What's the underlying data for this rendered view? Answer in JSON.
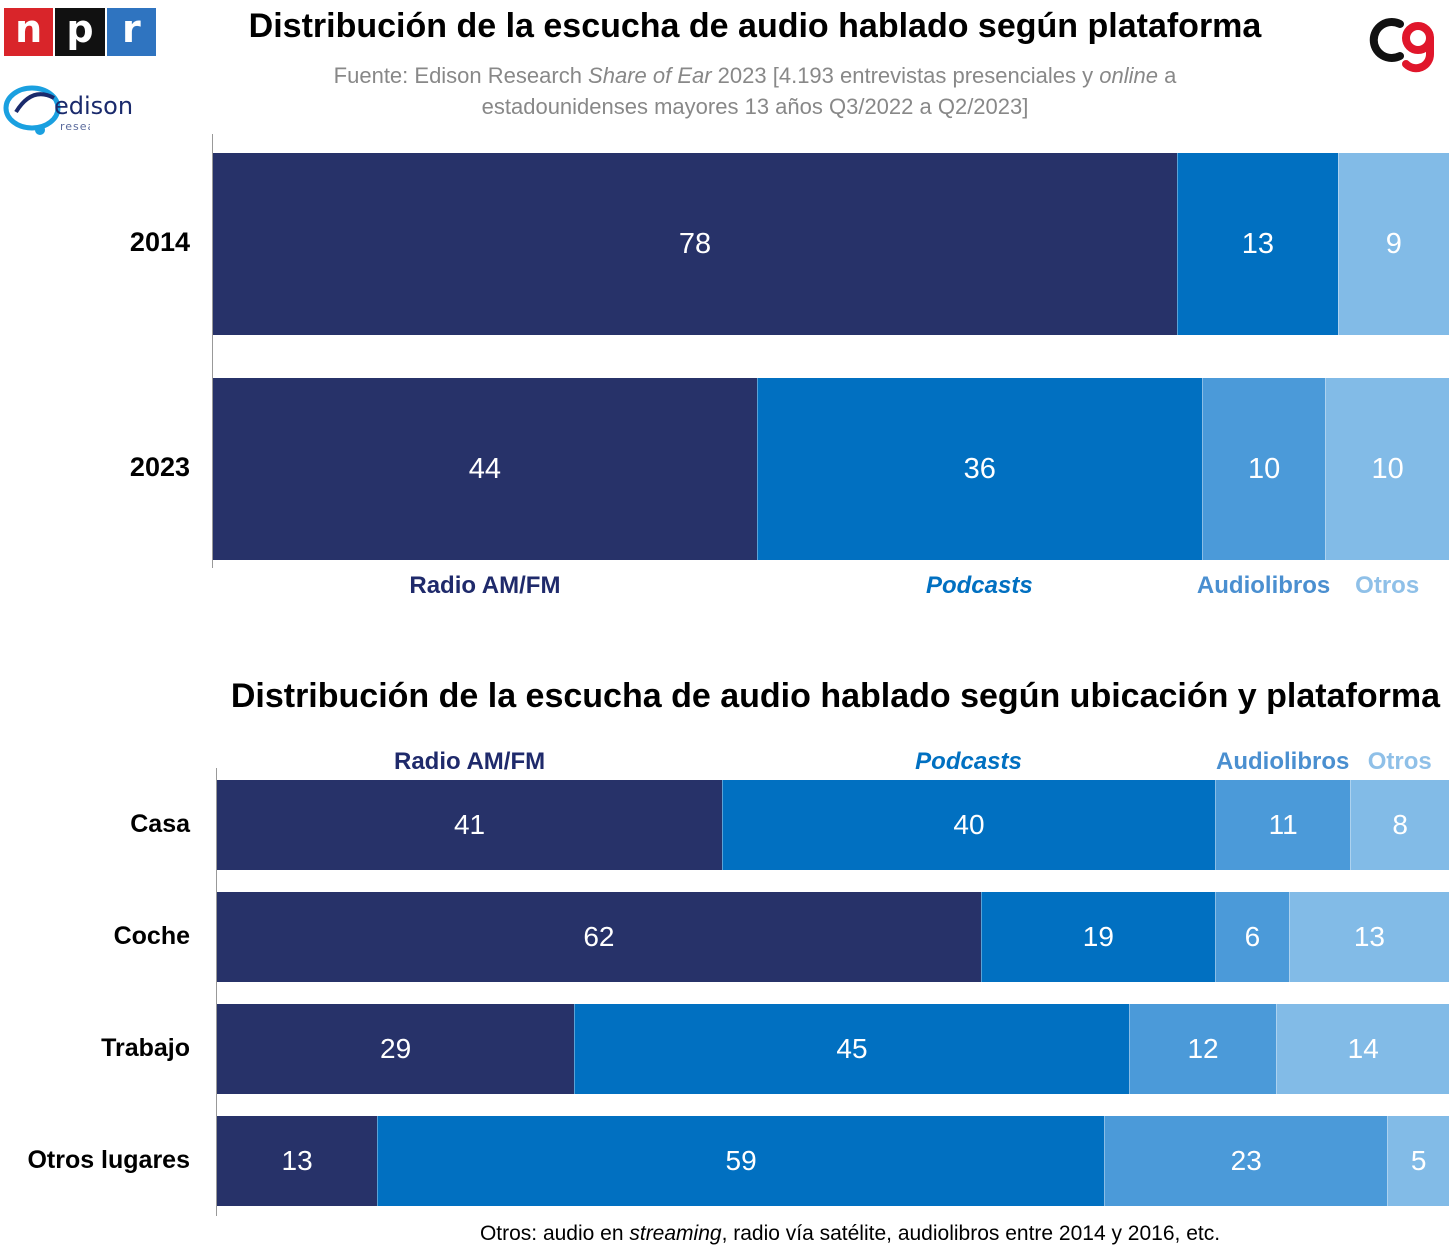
{
  "logos": {
    "npr": [
      "n",
      "p",
      "r"
    ],
    "edison": {
      "word": "edison",
      "sub": "research"
    },
    "cg": "cg-logo"
  },
  "chart1": {
    "title": "Distribución de la escucha de audio hablado según plataforma",
    "subtitle": {
      "part1": "Fuente: Edison Research ",
      "italic1": "Share of Ear",
      "part2": " 2023 [4.193 entrevistas presenciales y ",
      "italic2": "online",
      "part3": " a estadounidenses mayores 13 años Q3/2022 a Q2/2023]"
    }
  },
  "chart2": {
    "title": "Distribución de la escucha de audio hablado según ubicación y plataforma"
  },
  "footnote": {
    "part1": "Otros: audio en ",
    "italic": "streaming",
    "part2": ", radio vía satélite, audiolibros entre 2014 y 2016, etc."
  },
  "colors": {
    "radio": "#273269",
    "podcasts": "#0170c1",
    "audiolibros": "#4b9ad9",
    "otros": "#82bbe7",
    "legend_radio": "#1f2a6b",
    "legend_podcasts": "#0170c1",
    "legend_audiolibros": "#4a8fd0",
    "legend_otros": "#8fc0e8"
  },
  "chart_data": [
    {
      "type": "bar",
      "stacked": true,
      "orientation": "horizontal",
      "title": "Distribución de la escucha de audio hablado según plataforma",
      "categories": [
        "2014",
        "2023"
      ],
      "series": [
        {
          "name": "Radio AM/FM",
          "values": [
            78,
            44
          ]
        },
        {
          "name": "Podcasts",
          "values": [
            13,
            36
          ]
        },
        {
          "name": "Audiolibros",
          "values": [
            0,
            10
          ]
        },
        {
          "name": "Otros",
          "values": [
            9,
            10
          ]
        }
      ],
      "xlim": [
        0,
        100
      ],
      "legend": "bottom"
    },
    {
      "type": "bar",
      "stacked": true,
      "orientation": "horizontal",
      "title": "Distribución de la escucha de audio hablado según ubicación y plataforma",
      "categories": [
        "Casa",
        "Coche",
        "Trabajo",
        "Otros lugares"
      ],
      "series": [
        {
          "name": "Radio AM/FM",
          "values": [
            41,
            62,
            29,
            13
          ]
        },
        {
          "name": "Podcasts",
          "values": [
            40,
            19,
            45,
            59
          ]
        },
        {
          "name": "Audiolibros",
          "values": [
            11,
            6,
            12,
            23
          ]
        },
        {
          "name": "Otros",
          "values": [
            8,
            13,
            14,
            5
          ]
        }
      ],
      "xlim": [
        0,
        100
      ],
      "legend": "top"
    }
  ]
}
